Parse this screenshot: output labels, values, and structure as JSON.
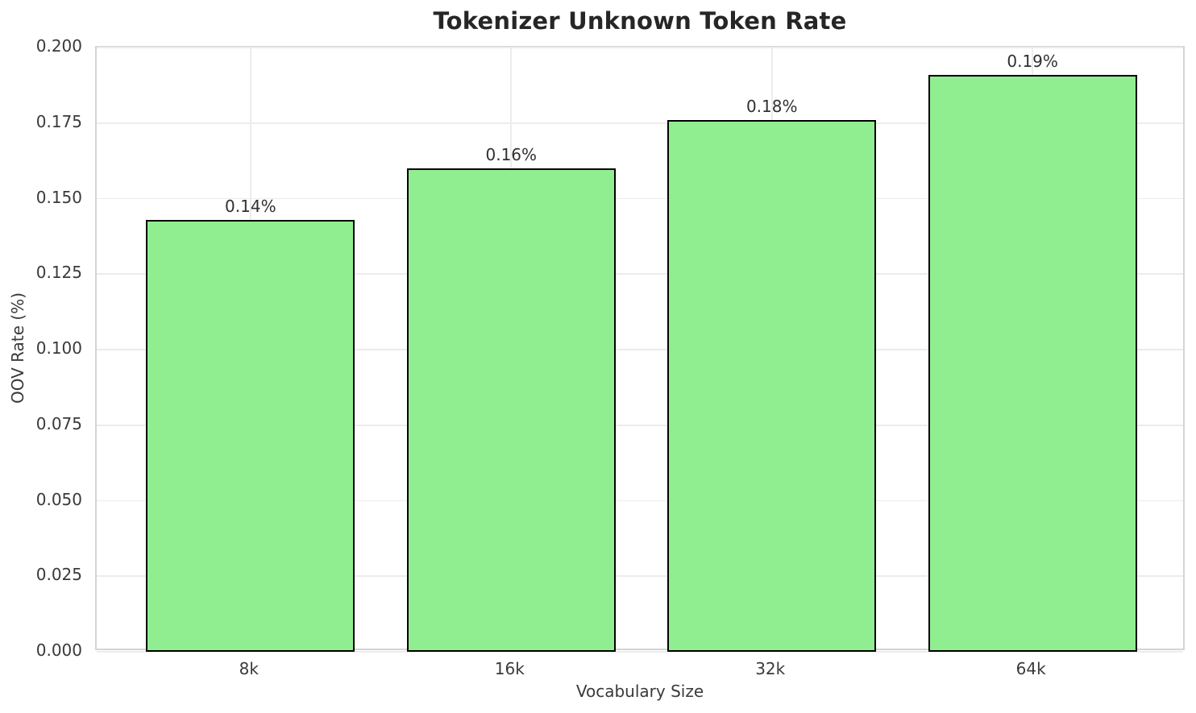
{
  "chart_data": {
    "type": "bar",
    "title": "Tokenizer Unknown Token Rate",
    "xlabel": "Vocabulary Size",
    "ylabel": "OOV Rate (%)",
    "categories": [
      "8k",
      "16k",
      "32k",
      "64k"
    ],
    "values": [
      0.143,
      0.16,
      0.176,
      0.191
    ],
    "bar_labels": [
      "0.14%",
      "0.16%",
      "0.18%",
      "0.19%"
    ],
    "ylim": [
      0.0,
      0.2
    ],
    "yticks": [
      "0.000",
      "0.025",
      "0.050",
      "0.075",
      "0.100",
      "0.125",
      "0.150",
      "0.175",
      "0.200"
    ],
    "grid": "both",
    "legend": "none",
    "colors": {
      "bar_fill": "#90EE90",
      "bar_edge": "#000000",
      "gridline": "#ececec",
      "spine": "#d4d4d4",
      "text": "#3a3a3a",
      "title_text": "#262626",
      "background": "#ffffff"
    }
  }
}
